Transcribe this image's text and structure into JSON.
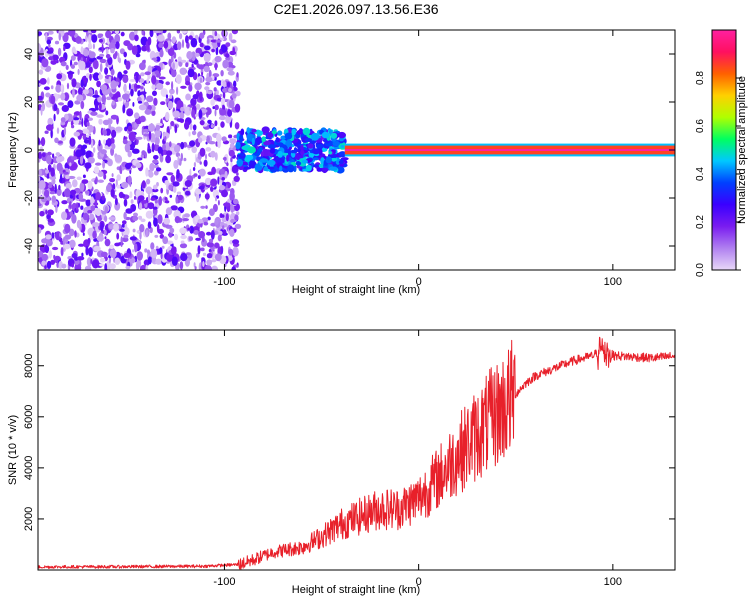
{
  "figure_title": "C2E1.2026.097.13.56.E36",
  "colors": {
    "snr_line": "#e8202a",
    "axis": "#000000",
    "background": "#ffffff",
    "colorbar_stops": [
      "#e8d8f8",
      "#b080f0",
      "#7a1cf0",
      "#3a00ff",
      "#0040ff",
      "#00c8ff",
      "#00ff60",
      "#b0ff00",
      "#ffd000",
      "#ff6000",
      "#ff1060",
      "#ff20a0"
    ]
  },
  "chart_data": [
    {
      "type": "heatmap",
      "title": "",
      "xlabel": "Height of straight line (km)",
      "ylabel": "Frequency (Hz)",
      "xlim": [
        -196,
        132
      ],
      "ylim": [
        -50,
        50
      ],
      "xticks": [
        -100,
        0,
        100
      ],
      "yticks": [
        -40,
        -20,
        0,
        20,
        40
      ],
      "grid": false,
      "description_series": [
        {
          "name": "noise region",
          "x_range": [
            -196,
            -93
          ],
          "freq_range": [
            -50,
            50
          ],
          "amplitude": [
            0.0,
            0.25
          ]
        },
        {
          "name": "transition region",
          "x_range": [
            -93,
            -38
          ],
          "freq_range": [
            -12,
            12
          ],
          "amplitude": [
            0.2,
            0.5
          ]
        },
        {
          "name": "doppler line",
          "x_range": [
            -38,
            132
          ],
          "freq_range": [
            -1,
            1
          ],
          "amplitude": [
            0.85,
            1.0
          ]
        }
      ],
      "colorbar": {
        "label": "Normalized spectral amplitude",
        "range": [
          0,
          1
        ],
        "ticks": [
          0.0,
          0.2,
          0.4,
          0.6,
          0.8
        ]
      }
    },
    {
      "type": "line",
      "title": "",
      "xlabel": "Height of straight line (km)",
      "ylabel": "SNR (10 * v/v)",
      "xlim": [
        -196,
        132
      ],
      "ylim": [
        0,
        9400
      ],
      "xticks": [
        -100,
        0,
        100
      ],
      "yticks": [
        2000,
        4000,
        6000,
        8000
      ],
      "grid": false,
      "series": [
        {
          "name": "SNR",
          "x": [
            -196,
            -150,
            -110,
            -92,
            -85,
            -75,
            -60,
            -50,
            -40,
            -30,
            -20,
            -10,
            0,
            10,
            20,
            30,
            40,
            50,
            55,
            60,
            70,
            80,
            90,
            95,
            100,
            110,
            120,
            132
          ],
          "y": [
            120,
            130,
            150,
            220,
            400,
            700,
            900,
            1300,
            1800,
            2100,
            2400,
            2400,
            2800,
            3600,
            4500,
            5300,
            6100,
            6900,
            7300,
            7600,
            7900,
            8200,
            8400,
            8700,
            8400,
            8350,
            8300,
            8380
          ]
        }
      ]
    }
  ]
}
